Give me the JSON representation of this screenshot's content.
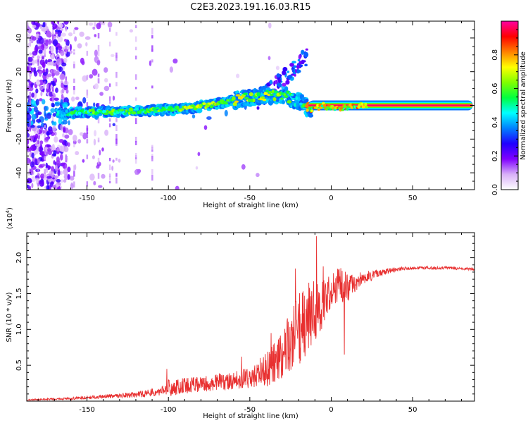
{
  "title": "C2E3.2023.191.16.03.R15",
  "chart_data": [
    {
      "type": "heatmap",
      "xlabel": "Height of straight line (km)",
      "ylabel": "Frequency (Hz)",
      "xlim": [
        -187,
        88
      ],
      "ylim": [
        -50,
        50
      ],
      "xticks": [
        -150,
        -100,
        -50,
        0,
        50
      ],
      "xtick_labels": [
        "-150",
        "-100",
        "-50",
        "0",
        "50"
      ],
      "yticks": [
        40,
        20,
        0,
        -20,
        -40
      ],
      "ytick_labels": [
        "40",
        "20",
        "0",
        "-20",
        "-40"
      ],
      "colorbar": {
        "label": "Normalized spectral amplitude",
        "range": [
          0,
          1
        ],
        "ticks": [
          0.0,
          0.2,
          0.4,
          0.6,
          0.8
        ],
        "tick_labels": [
          "0.0",
          "0.2",
          "0.4",
          "0.6",
          "0.8"
        ],
        "colors": [
          "#ffffff",
          "#d8b0f8",
          "#8000ff",
          "#2000ff",
          "#0080ff",
          "#00ffff",
          "#00ff40",
          "#80ff00",
          "#ffff00",
          "#ff8000",
          "#ff0000",
          "#ff00a0"
        ]
      },
      "ridge": {
        "x": [
          -168,
          -150,
          -130,
          -110,
          -90,
          -70,
          -55,
          -40,
          -28,
          -22,
          -18,
          -14,
          -10,
          -5,
          0,
          10,
          20,
          50,
          87
        ],
        "y": [
          -5,
          -4,
          -4,
          -3,
          -2,
          1,
          4,
          6,
          6,
          3,
          2,
          -2,
          -2,
          0,
          -2,
          -1,
          0,
          0,
          0
        ],
        "amplitude": [
          0.5,
          0.6,
          0.6,
          0.6,
          0.65,
          0.7,
          0.7,
          0.7,
          0.6,
          0.5,
          0.5,
          0.9,
          0.95,
          1.0,
          0.9,
          1.0,
          1.0,
          1.0,
          1.0
        ]
      }
    },
    {
      "type": "line",
      "xlabel": "Height of straight line (km)",
      "ylabel": "SNR (10 * v/v)",
      "yscale_label": "(x10",
      "yscale_exponent": "4",
      "yscale_close": ")",
      "xlim": [
        -187,
        88
      ],
      "ylim": [
        0,
        2.35
      ],
      "xticks": [
        -150,
        -100,
        -50,
        0,
        50
      ],
      "xtick_labels": [
        "-150",
        "-100",
        "-50",
        "0",
        "50"
      ],
      "yticks": [
        0.5,
        1.0,
        1.5,
        2.0
      ],
      "ytick_labels": [
        "0.5",
        "1.0",
        "1.5",
        "2.0"
      ],
      "series_color": "#e83030",
      "envelope": {
        "x": [
          -187,
          -160,
          -140,
          -120,
          -105,
          -100,
          -90,
          -80,
          -70,
          -60,
          -50,
          -40,
          -35,
          -30,
          -25,
          -20,
          -15,
          -10,
          -5,
          0,
          5,
          10,
          15,
          20,
          30,
          40,
          50,
          60,
          70,
          80,
          88
        ],
        "y": [
          0.02,
          0.04,
          0.07,
          0.1,
          0.15,
          0.2,
          0.22,
          0.25,
          0.28,
          0.3,
          0.35,
          0.45,
          0.55,
          0.7,
          0.9,
          1.05,
          1.2,
          1.3,
          1.4,
          1.5,
          1.65,
          1.6,
          1.65,
          1.72,
          1.8,
          1.84,
          1.86,
          1.86,
          1.86,
          1.85,
          1.84
        ],
        "noise": [
          0.005,
          0.01,
          0.03,
          0.06,
          0.1,
          0.12,
          0.12,
          0.12,
          0.12,
          0.12,
          0.15,
          0.25,
          0.3,
          0.35,
          0.45,
          0.5,
          0.5,
          0.45,
          0.35,
          0.3,
          0.25,
          0.2,
          0.15,
          0.1,
          0.05,
          0.03,
          0.02,
          0.02,
          0.02,
          0.02,
          0.02
        ]
      },
      "spikes": [
        {
          "x": -101,
          "y": 0.45
        },
        {
          "x": -55,
          "y": 0.62
        },
        {
          "x": -37,
          "y": 0.95
        },
        {
          "x": -22,
          "y": 1.85
        },
        {
          "x": -9,
          "y": 2.3
        },
        {
          "x": -5,
          "y": 1.88
        },
        {
          "x": 8,
          "y": 2.35
        },
        {
          "x": 8,
          "y": 0.65
        }
      ]
    }
  ]
}
